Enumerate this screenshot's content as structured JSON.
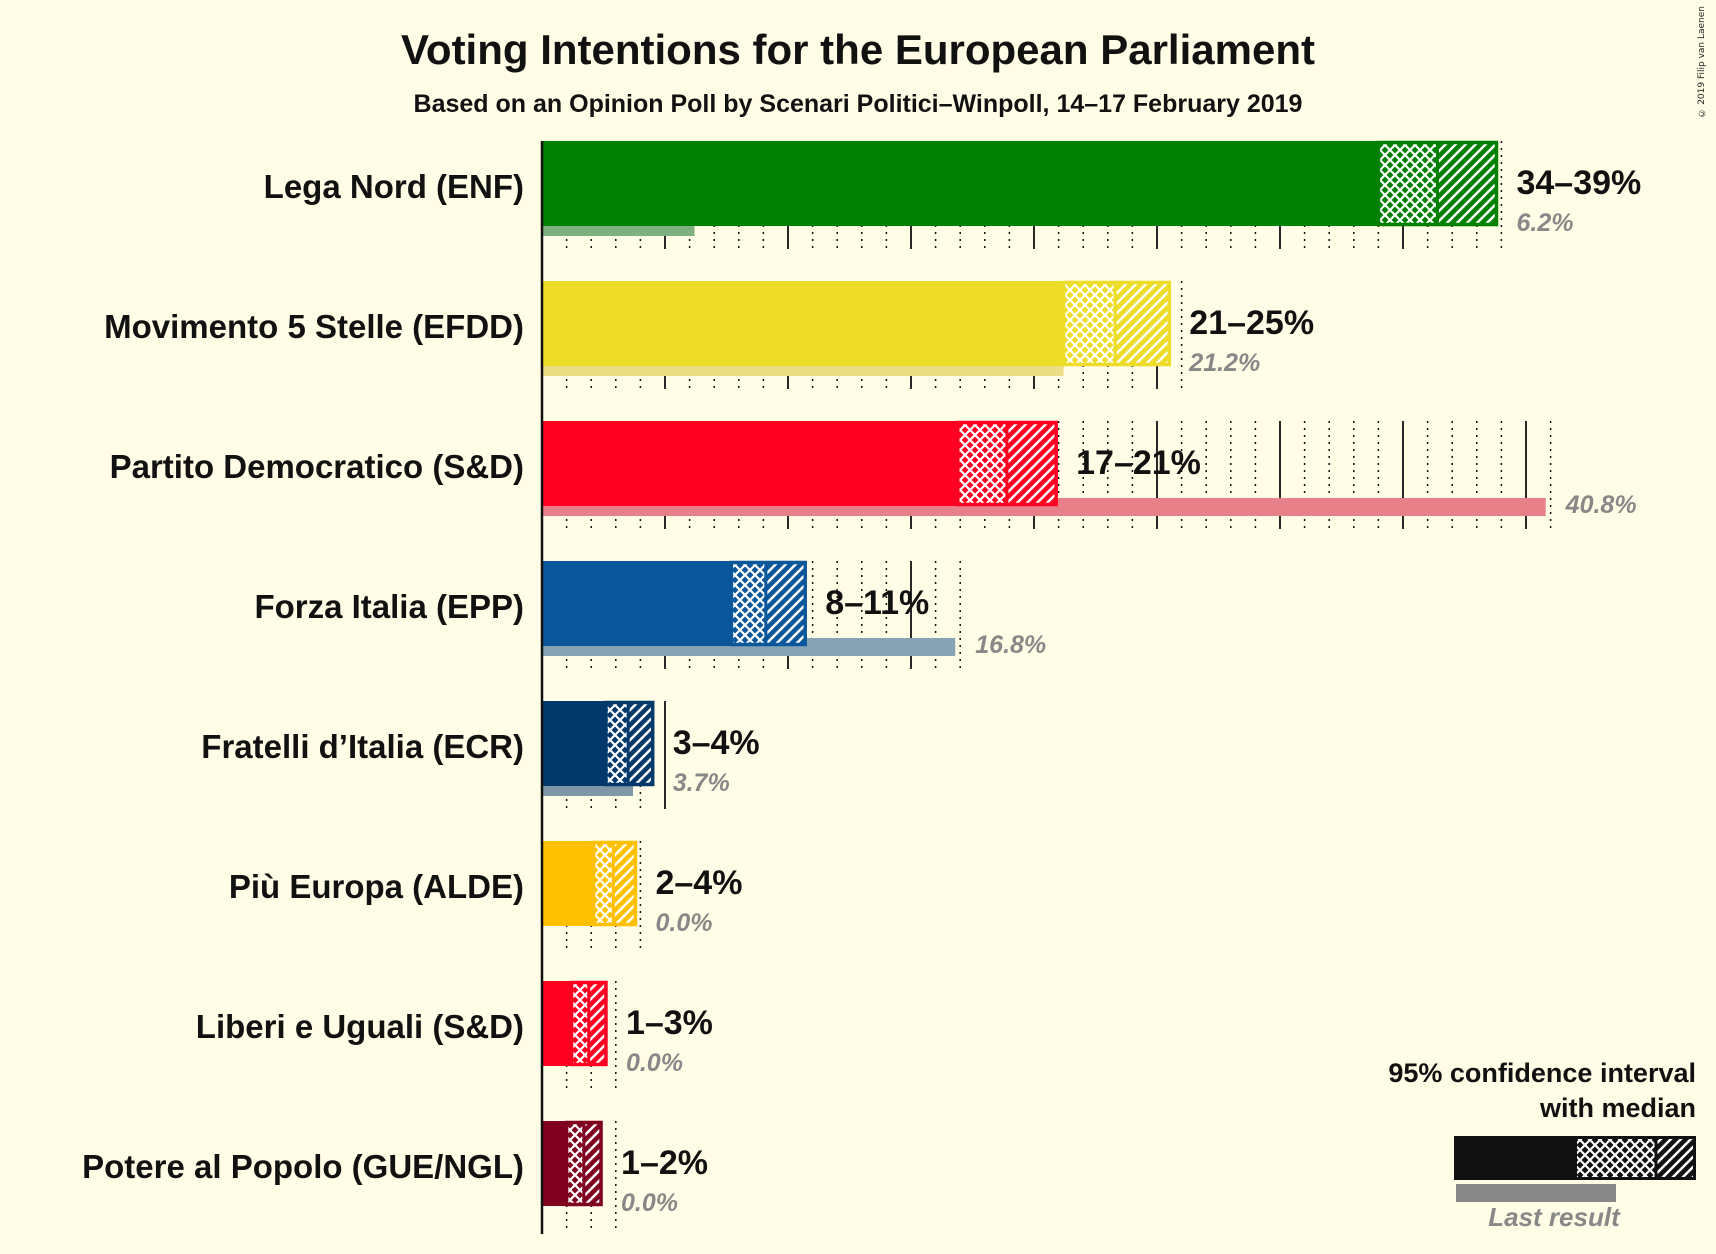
{
  "copyright": "© 2019 Filip van Laenen",
  "chart_data": {
    "type": "bar",
    "title": "Voting Intentions for the European Parliament",
    "subtitle": "Based on an Opinion Poll by Scenari Politici–Winpoll, 14–17 February 2019",
    "orientation": "horizontal",
    "xlim": [
      0,
      41
    ],
    "series_meaning": {
      "low": "lower bound of 95% confidence interval",
      "median": "median",
      "high": "upper bound of 95% confidence interval",
      "last": "last result"
    },
    "parties": [
      {
        "name": "Lega Nord (ENF)",
        "low": 34,
        "median": 36.4,
        "high": 38.8,
        "range_label": "34–39%",
        "last": 6.2,
        "last_label": "6.2%",
        "color": "#008000",
        "last_color": "#7FB07F"
      },
      {
        "name": "Movimento 5 Stelle (EFDD)",
        "low": 21.2,
        "median": 23.3,
        "high": 25.5,
        "range_label": "21–25%",
        "last": 21.2,
        "last_label": "21.2%",
        "color": "#EDDC28",
        "last_color": "#EBDD84"
      },
      {
        "name": "Partito Democratico (S&D)",
        "low": 16.9,
        "median": 18.9,
        "high": 20.9,
        "range_label": "17–21%",
        "last": 40.8,
        "last_label": "40.8%",
        "color": "#FF0022",
        "last_color": "#E8808A"
      },
      {
        "name": "Forza Italia (EPP)",
        "low": 7.7,
        "median": 9.1,
        "high": 10.7,
        "range_label": "8–11%",
        "last": 16.8,
        "last_label": "16.8%",
        "color": "#0A579B",
        "last_color": "#87A3B4"
      },
      {
        "name": "Fratelli d’Italia (ECR)",
        "low": 2.6,
        "median": 3.5,
        "high": 4.5,
        "range_label": "3–4%",
        "last": 3.7,
        "last_label": "3.7%",
        "color": "#03386A",
        "last_color": "#7F98A8"
      },
      {
        "name": "Più Europa (ALDE)",
        "low": 2.1,
        "median": 2.9,
        "high": 3.8,
        "range_label": "2–4%",
        "last": 0,
        "last_label": "0.0%",
        "color": "#FFC000",
        "last_color": "#F2D97F"
      },
      {
        "name": "Liberi e Uguali (S&D)",
        "low": 1.2,
        "median": 1.9,
        "high": 2.6,
        "range_label": "1–3%",
        "last": 0,
        "last_label": "0.0%",
        "color": "#FF0022",
        "last_color": "#E8808A"
      },
      {
        "name": "Potere al Popolo (GUE/NGL)",
        "low": 1.0,
        "median": 1.7,
        "high": 2.4,
        "range_label": "1–2%",
        "last": 0,
        "last_label": "0.0%",
        "color": "#800020",
        "last_color": "#B27F8A"
      }
    ],
    "legend": {
      "title_line1": "95% confidence interval",
      "title_line2": "with median",
      "last_result": "Last result",
      "placement": "bottom-right"
    },
    "grid": true
  }
}
